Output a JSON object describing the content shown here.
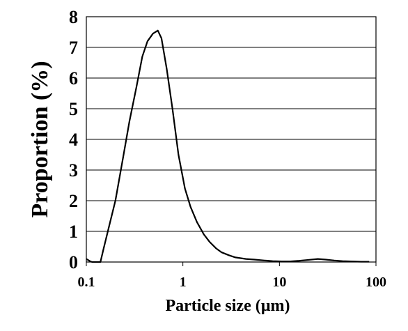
{
  "chart_data": {
    "type": "line",
    "title": "",
    "xlabel": "Particle size (µm)",
    "ylabel": "Proportion (%)",
    "x_scale": "log",
    "xlim": [
      0.1,
      100
    ],
    "ylim": [
      0,
      8
    ],
    "x_ticks": [
      "0.1",
      "1",
      "10",
      "100"
    ],
    "y_ticks": [
      "0",
      "1",
      "2",
      "3",
      "4",
      "5",
      "6",
      "7",
      "8"
    ],
    "grid": "horizontal",
    "legend": "none",
    "series": [
      {
        "x": [
          0.1,
          0.11,
          0.115,
          0.14,
          0.15,
          0.17,
          0.2,
          0.24,
          0.28,
          0.33,
          0.38,
          0.43,
          0.49,
          0.55,
          0.6,
          0.68,
          0.78,
          0.9,
          1.05,
          1.2,
          1.4,
          1.65,
          1.9,
          2.2,
          2.5,
          3.0,
          3.5,
          4.5,
          5.5,
          7.0,
          8.5,
          10.5,
          13.0,
          16.0,
          20.0,
          25.0,
          30.0,
          37.0,
          45.0,
          55.0,
          70.0,
          85.0
        ],
        "y": [
          0.1,
          0.02,
          0.0,
          0.0,
          0.4,
          1.1,
          2.0,
          3.4,
          4.6,
          5.7,
          6.7,
          7.2,
          7.45,
          7.55,
          7.3,
          6.3,
          5.0,
          3.5,
          2.4,
          1.8,
          1.3,
          0.9,
          0.65,
          0.45,
          0.32,
          0.22,
          0.15,
          0.1,
          0.08,
          0.05,
          0.03,
          0.02,
          0.02,
          0.04,
          0.07,
          0.1,
          0.08,
          0.05,
          0.03,
          0.02,
          0.01,
          0.01
        ]
      }
    ]
  }
}
